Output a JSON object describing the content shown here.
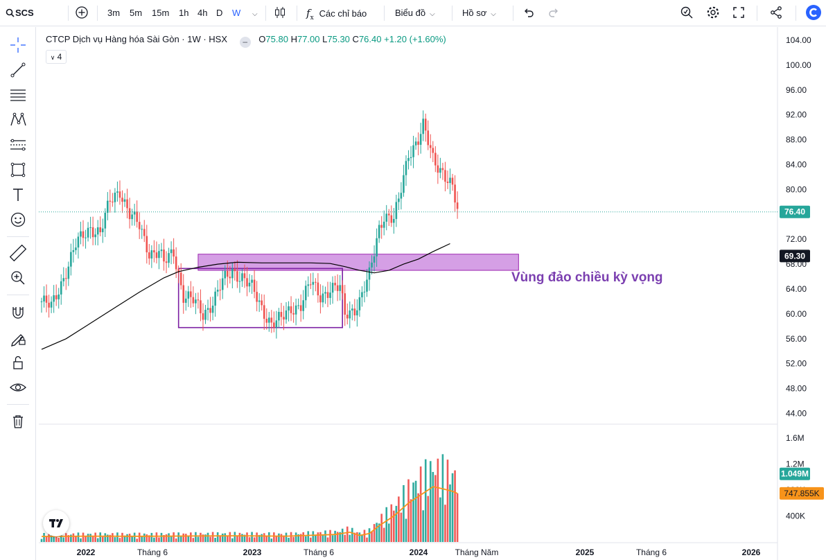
{
  "header": {
    "symbol": "SCS",
    "intervals": [
      {
        "label": "3m",
        "active": false
      },
      {
        "label": "5m",
        "active": false
      },
      {
        "label": "15m",
        "active": false
      },
      {
        "label": "1h",
        "active": false
      },
      {
        "label": "4h",
        "active": false
      },
      {
        "label": "D",
        "active": false
      },
      {
        "label": "W",
        "active": true
      }
    ],
    "indicators_label": "Các chỉ báo",
    "chart_label": "Biểu đồ",
    "profile_label": "Hồ sơ"
  },
  "legend": {
    "name": "CTCP Dịch vụ Hàng hóa Sài Gòn · 1W · HSX",
    "o_label": "O",
    "o": "75.80",
    "h_label": "H",
    "h": "77.00",
    "l_label": "L",
    "l": "75.30",
    "c_label": "C",
    "c": "76.40",
    "change": "+1.20 (+1.60%)",
    "indicator_count": "4"
  },
  "annotation": {
    "zone_label": "Vùng đảo chiều kỳ vọng"
  },
  "colors": {
    "up": "#26a69a",
    "down": "#ef5350",
    "ma_price": "#000000",
    "ma_volume": "#f7931a",
    "zone_fill": "#c77fdc",
    "zone_border": "#9c27b0",
    "box_border": "#7b1fa2"
  },
  "chart_data": {
    "type": "candlestick",
    "price_axis": {
      "ticks": [
        "104.00",
        "100.00",
        "96.00",
        "92.00",
        "88.00",
        "84.00",
        "80.00",
        "72.00",
        "68.00",
        "64.00",
        "60.00",
        "56.00",
        "52.00",
        "48.00",
        "44.00"
      ],
      "range": [
        42.5,
        106
      ],
      "last_price_label": "76.40",
      "last_price": 76.4,
      "zone_top_label": "69.30",
      "zone_top": 69.3
    },
    "volume_axis": {
      "ticks": [
        "1.6M",
        "1.2M",
        "800K",
        "400K"
      ],
      "range": [
        0,
        1750000
      ],
      "last_volume_label": "1.049M",
      "last_volume": 1049000,
      "volume_ma_label": "747.855K",
      "volume_ma": 747855
    },
    "time_axis": {
      "ticks": [
        {
          "label": "2022",
          "t": 0
        },
        {
          "label": "Tháng 6",
          "t": 0.4
        },
        {
          "label": "2023",
          "t": 1
        },
        {
          "label": "Tháng 6",
          "t": 1.4
        },
        {
          "label": "2024",
          "t": 2
        },
        {
          "label": "Tháng Năm",
          "t": 2.35
        },
        {
          "label": "2025",
          "t": 3
        },
        {
          "label": "Tháng 6",
          "t": 3.4
        },
        {
          "label": "2026",
          "t": 4
        }
      ]
    },
    "price_path": [
      [
        0,
        62
      ],
      [
        4,
        61
      ],
      [
        8,
        65
      ],
      [
        14,
        71
      ],
      [
        20,
        74
      ],
      [
        24,
        73
      ],
      [
        28,
        78
      ],
      [
        32,
        80
      ],
      [
        36,
        76
      ],
      [
        40,
        74
      ],
      [
        44,
        70
      ],
      [
        48,
        70
      ],
      [
        50,
        68
      ],
      [
        54,
        70
      ],
      [
        58,
        63
      ],
      [
        62,
        62
      ],
      [
        66,
        60
      ],
      [
        70,
        62
      ],
      [
        74,
        65
      ],
      [
        78,
        67
      ],
      [
        82,
        66
      ],
      [
        86,
        64
      ],
      [
        90,
        61
      ],
      [
        94,
        58.5
      ],
      [
        98,
        59
      ],
      [
        102,
        61
      ],
      [
        106,
        61.5
      ],
      [
        110,
        65
      ],
      [
        114,
        63
      ],
      [
        118,
        64
      ],
      [
        122,
        64
      ],
      [
        124,
        60
      ],
      [
        128,
        61
      ],
      [
        130,
        62
      ],
      [
        134,
        66
      ],
      [
        136,
        70
      ],
      [
        138,
        74
      ],
      [
        140,
        76
      ],
      [
        144,
        75
      ],
      [
        146,
        78
      ],
      [
        150,
        86
      ],
      [
        154,
        88
      ],
      [
        156,
        90
      ],
      [
        160,
        85
      ],
      [
        164,
        83
      ],
      [
        168,
        80
      ],
      [
        170,
        76.4
      ]
    ],
    "ma_price": [
      [
        0,
        54.3
      ],
      [
        10,
        56
      ],
      [
        20,
        58.5
      ],
      [
        30,
        61
      ],
      [
        40,
        63.5
      ],
      [
        50,
        65.8
      ],
      [
        56,
        66.8
      ],
      [
        64,
        67.5
      ],
      [
        72,
        68
      ],
      [
        80,
        68.3
      ],
      [
        90,
        68.2
      ],
      [
        100,
        68.2
      ],
      [
        110,
        68.2
      ],
      [
        118,
        68.1
      ],
      [
        124,
        67.6
      ],
      [
        130,
        67
      ],
      [
        136,
        66.6
      ],
      [
        142,
        67
      ],
      [
        148,
        68
      ],
      [
        154,
        68.8
      ],
      [
        160,
        70
      ],
      [
        167,
        71.3
      ]
    ],
    "zone": {
      "t_start": 64,
      "t_end": 195,
      "low": 67,
      "high": 69.6
    },
    "box": {
      "t_start": 56,
      "t_end": 123,
      "low": 57.8,
      "high": 67.3
    },
    "volume_ma": [
      [
        0,
        85000
      ],
      [
        20,
        90000
      ],
      [
        40,
        88000
      ],
      [
        60,
        92000
      ],
      [
        80,
        95000
      ],
      [
        100,
        90000
      ],
      [
        120,
        115000
      ],
      [
        126,
        150000
      ],
      [
        130,
        100000
      ],
      [
        134,
        130000
      ],
      [
        138,
        250000
      ],
      [
        144,
        400000
      ],
      [
        150,
        600000
      ],
      [
        156,
        750000
      ],
      [
        160,
        850000
      ],
      [
        164,
        820000
      ],
      [
        168,
        780000
      ],
      [
        170,
        747855
      ]
    ]
  }
}
